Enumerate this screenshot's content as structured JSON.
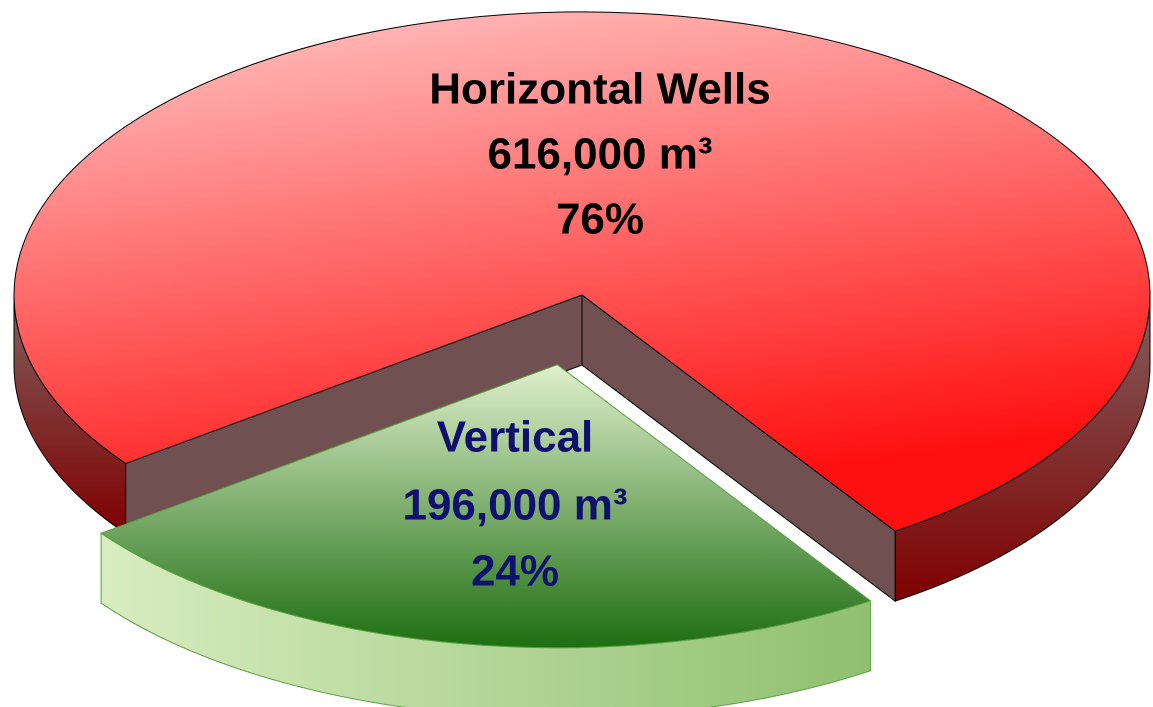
{
  "chart_data": {
    "type": "pie3d",
    "categories": [
      "Horizontal Wells",
      "Vertical"
    ],
    "values": [
      616000,
      196000
    ],
    "value_labels": [
      "616,000 m³",
      "196,000 m³"
    ],
    "percents": [
      76,
      24
    ],
    "percent_labels": [
      "76%",
      "24%"
    ],
    "colors": [
      "#ff1010",
      "#1e6e12"
    ]
  }
}
